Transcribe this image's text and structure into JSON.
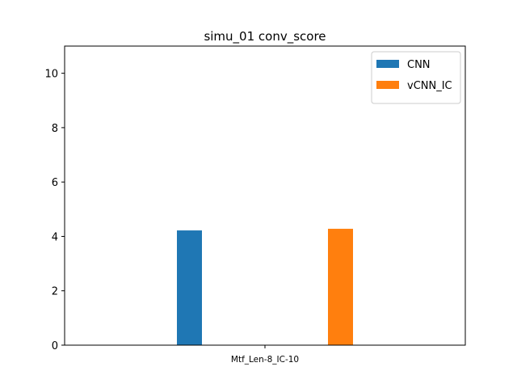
{
  "chart_data": {
    "type": "bar",
    "title": "simu_01 conv_score",
    "xlabel": "",
    "ylabel": "",
    "categories": [
      "Mtf_Len-8_IC-10"
    ],
    "series": [
      {
        "name": "CNN",
        "values": [
          4.22
        ],
        "color": "#1f77b4"
      },
      {
        "name": "vCNN_IC",
        "values": [
          4.28
        ],
        "color": "#ff7f0e"
      }
    ],
    "ylim": [
      0,
      11
    ],
    "yticks": [
      0,
      2,
      4,
      6,
      8,
      10
    ],
    "grid": false,
    "legend": "top-right"
  }
}
